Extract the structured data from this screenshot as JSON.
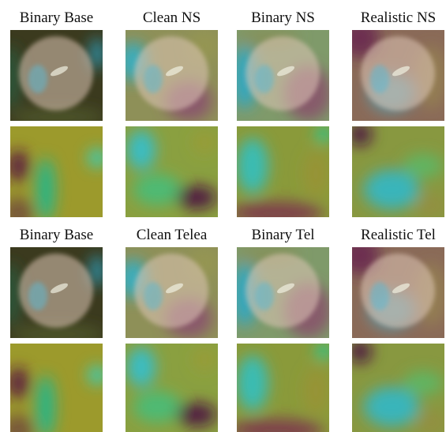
{
  "groups": [
    {
      "titles": [
        "Binary Base",
        "Clean NS",
        "Binary NS",
        "Realistic NS"
      ]
    },
    {
      "titles": [
        "Binary Base",
        "Clean Telea",
        "Binary Tel",
        "Realistic Tel"
      ]
    }
  ]
}
